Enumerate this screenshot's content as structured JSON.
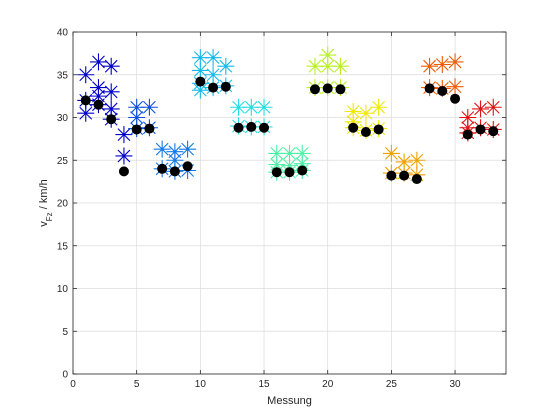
{
  "chart_data": {
    "type": "scatter",
    "title": "",
    "xlabel": "Messung",
    "ylabel_main": "v",
    "ylabel_sub": "Fz",
    "ylabel_unit": " / km/h",
    "xlim": [
      0,
      34
    ],
    "ylim": [
      0,
      40
    ],
    "xticks": [
      0,
      5,
      10,
      15,
      20,
      25,
      30
    ],
    "yticks": [
      0,
      5,
      10,
      15,
      20,
      25,
      30,
      35,
      40
    ],
    "grid": true,
    "mean_color": "#000000",
    "groups": [
      {
        "color": "#0000c8",
        "points": [
          {
            "x": 1,
            "stars": [
              35,
              32,
              30.5
            ],
            "mean": 32
          },
          {
            "x": 2,
            "stars": [
              36.5,
              33.5,
              32.5,
              31.5
            ],
            "mean": 31.5
          },
          {
            "x": 3,
            "stars": [
              36,
              33,
              31,
              29.8
            ],
            "mean": 29.8
          },
          {
            "x": 4,
            "stars": [
              28,
              25.5
            ],
            "mean": 23.7
          }
        ]
      },
      {
        "color": "#0d50e0",
        "points": [
          {
            "x": 5,
            "stars": [
              31.2,
              30,
              28.7
            ],
            "mean": 28.6
          },
          {
            "x": 6,
            "stars": [
              31.2,
              28.8
            ],
            "mean": 28.7
          }
        ]
      },
      {
        "color": "#1478e8",
        "points": [
          {
            "x": 7,
            "stars": [
              26.3,
              24
            ],
            "mean": 24
          },
          {
            "x": 8,
            "stars": [
              26,
              25,
              23.7
            ],
            "mean": 23.7
          },
          {
            "x": 9,
            "stars": [
              26.3,
              23.8
            ],
            "mean": 24.3
          }
        ]
      },
      {
        "color": "#17b9ea",
        "points": [
          {
            "x": 10,
            "stars": [
              37,
              35.5,
              34,
              33.2
            ],
            "mean": 34.2
          },
          {
            "x": 11,
            "stars": [
              37,
              35,
              33.5
            ],
            "mean": 33.5
          },
          {
            "x": 12,
            "stars": [
              36,
              33.7
            ],
            "mean": 33.6
          }
        ]
      },
      {
        "color": "#22dde2",
        "points": [
          {
            "x": 13,
            "stars": [
              31.2,
              29
            ],
            "mean": 28.8
          },
          {
            "x": 14,
            "stars": [
              31.2,
              28.9
            ],
            "mean": 28.9
          },
          {
            "x": 15,
            "stars": [
              31.2,
              28.9
            ],
            "mean": 28.8
          }
        ]
      },
      {
        "color": "#4ef0a6",
        "points": [
          {
            "x": 16,
            "stars": [
              25.8,
              24.5,
              23.6
            ],
            "mean": 23.6
          },
          {
            "x": 17,
            "stars": [
              25.8,
              24.4,
              23.6
            ],
            "mean": 23.6
          },
          {
            "x": 18,
            "stars": [
              25.8,
              24.6,
              23.8
            ],
            "mean": 23.8
          }
        ]
      },
      {
        "color": "#b9f025",
        "points": [
          {
            "x": 19,
            "stars": [
              36,
              33.5
            ],
            "mean": 33.3
          },
          {
            "x": 20,
            "stars": [
              37.3,
              36,
              33.5
            ],
            "mean": 33.4
          },
          {
            "x": 21,
            "stars": [
              36,
              33.5
            ],
            "mean": 33.3
          }
        ]
      },
      {
        "color": "#f0e800",
        "points": [
          {
            "x": 22,
            "stars": [
              30.7,
              29.5,
              28.8
            ],
            "mean": 28.8
          },
          {
            "x": 23,
            "stars": [
              30.5,
              28.5
            ],
            "mean": 28.3
          },
          {
            "x": 24,
            "stars": [
              31.2,
              28.7
            ],
            "mean": 28.6
          }
        ]
      },
      {
        "color": "#f0a000",
        "points": [
          {
            "x": 25,
            "stars": [
              25.8,
              23.5
            ],
            "mean": 23.2
          },
          {
            "x": 26,
            "stars": [
              24.8,
              23.5
            ],
            "mean": 23.2
          },
          {
            "x": 27,
            "stars": [
              25,
              23.3
            ],
            "mean": 22.8
          }
        ]
      },
      {
        "color": "#f05a00",
        "points": [
          {
            "x": 28,
            "stars": [
              36,
              33.5
            ],
            "mean": 33.4
          },
          {
            "x": 29,
            "stars": [
              36.2,
              33.4
            ],
            "mean": 33.1
          },
          {
            "x": 30,
            "stars": [
              36.5,
              33.6
            ],
            "mean": 32.2
          }
        ]
      },
      {
        "color": "#e01414",
        "points": [
          {
            "x": 31,
            "stars": [
              30,
              28.8,
              28.2
            ],
            "mean": 28
          },
          {
            "x": 32,
            "stars": [
              31,
              28.8
            ],
            "mean": 28.6
          },
          {
            "x": 33,
            "stars": [
              31.2,
              28.6
            ],
            "mean": 28.4
          }
        ]
      }
    ]
  }
}
